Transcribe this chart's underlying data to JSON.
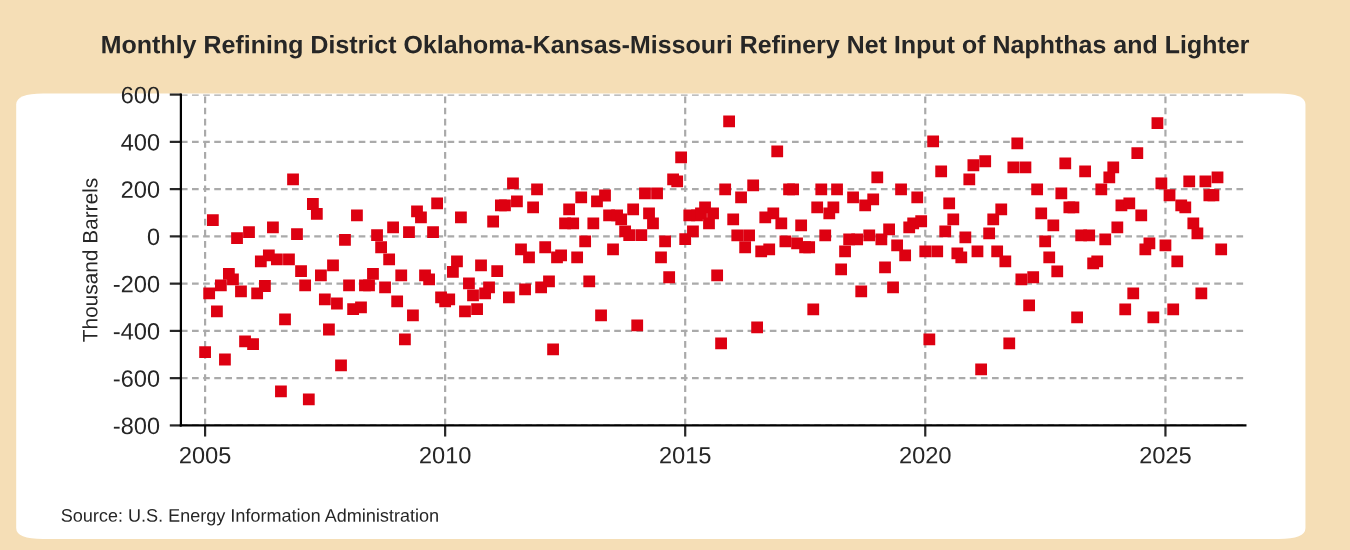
{
  "chart_data": {
    "type": "scatter",
    "title": "Monthly Refining District Oklahoma-Kansas-Missouri Refinery Net Input of Naphthas and Lighter",
    "ylabel": "Thousand Barrels",
    "annotations": [
      "Source: U.S. Energy Information Administration"
    ],
    "xlim": [
      "2004-07",
      "2026-09"
    ],
    "xticks": [
      {
        "value": "2005",
        "label": "2005"
      },
      {
        "value": "2010",
        "label": "2010"
      },
      {
        "value": "2015",
        "label": "2015"
      },
      {
        "value": "2020",
        "label": "2020"
      },
      {
        "value": "2025",
        "label": "2025"
      }
    ],
    "ylim": [
      -800,
      600
    ],
    "yticks": [
      -800,
      -600,
      -400,
      -200,
      0,
      200,
      400,
      600
    ],
    "grid": true,
    "marker": "square",
    "series": [
      {
        "color": "#dd0011",
        "x": [
          "2005-01",
          "2005-02",
          "2005-03",
          "2005-04",
          "2005-05",
          "2005-06",
          "2005-07",
          "2005-08",
          "2005-09",
          "2005-10",
          "2005-11",
          "2005-12",
          "2006-01",
          "2006-02",
          "2006-03",
          "2006-04",
          "2006-05",
          "2006-06",
          "2006-07",
          "2006-08",
          "2006-09",
          "2006-10",
          "2006-11",
          "2006-12",
          "2007-01",
          "2007-02",
          "2007-03",
          "2007-04",
          "2007-05",
          "2007-06",
          "2007-07",
          "2007-08",
          "2007-09",
          "2007-10",
          "2007-11",
          "2007-12",
          "2008-01",
          "2008-02",
          "2008-03",
          "2008-04",
          "2008-05",
          "2008-06",
          "2008-07",
          "2008-08",
          "2008-09",
          "2008-10",
          "2008-11",
          "2008-12",
          "2009-01",
          "2009-02",
          "2009-03",
          "2009-04",
          "2009-05",
          "2009-06",
          "2009-07",
          "2009-08",
          "2009-09",
          "2009-10",
          "2009-11",
          "2009-12",
          "2010-01",
          "2010-02",
          "2010-03",
          "2010-04",
          "2010-05",
          "2010-06",
          "2010-07",
          "2010-08",
          "2010-09",
          "2010-10",
          "2010-11",
          "2010-12",
          "2011-01",
          "2011-02",
          "2011-03",
          "2011-04",
          "2011-05",
          "2011-06",
          "2011-07",
          "2011-08",
          "2011-09",
          "2011-10",
          "2011-11",
          "2011-12",
          "2012-01",
          "2012-02",
          "2012-03",
          "2012-04",
          "2012-05",
          "2012-06",
          "2012-07",
          "2012-08",
          "2012-09",
          "2012-10",
          "2012-11",
          "2012-12",
          "2013-01",
          "2013-02",
          "2013-03",
          "2013-04",
          "2013-05",
          "2013-06",
          "2013-07",
          "2013-08",
          "2013-09",
          "2013-10",
          "2013-11",
          "2013-12",
          "2014-01",
          "2014-02",
          "2014-03",
          "2014-04",
          "2014-05",
          "2014-06",
          "2014-07",
          "2014-08",
          "2014-09",
          "2014-10",
          "2014-11",
          "2014-12",
          "2015-01",
          "2015-02",
          "2015-03",
          "2015-04",
          "2015-05",
          "2015-06",
          "2015-07",
          "2015-08",
          "2015-09",
          "2015-10",
          "2015-11",
          "2015-12",
          "2016-01",
          "2016-02",
          "2016-03",
          "2016-04",
          "2016-05",
          "2016-06",
          "2016-07",
          "2016-08",
          "2016-09",
          "2016-10",
          "2016-11",
          "2016-12",
          "2017-01",
          "2017-02",
          "2017-03",
          "2017-04",
          "2017-05",
          "2017-06",
          "2017-07",
          "2017-08",
          "2017-09",
          "2017-10",
          "2017-11",
          "2017-12",
          "2018-01",
          "2018-02",
          "2018-03",
          "2018-04",
          "2018-05",
          "2018-06",
          "2018-07",
          "2018-08",
          "2018-09",
          "2018-10",
          "2018-11",
          "2018-12",
          "2019-01",
          "2019-02",
          "2019-03",
          "2019-04",
          "2019-05",
          "2019-06",
          "2019-07",
          "2019-08",
          "2019-09",
          "2019-10",
          "2019-11",
          "2019-12",
          "2020-01",
          "2020-02",
          "2020-03",
          "2020-04",
          "2020-05",
          "2020-06",
          "2020-07",
          "2020-08",
          "2020-09",
          "2020-10",
          "2020-11",
          "2020-12",
          "2021-01",
          "2021-02",
          "2021-03",
          "2021-04",
          "2021-05",
          "2021-06",
          "2021-07",
          "2021-08",
          "2021-09",
          "2021-10",
          "2021-11",
          "2021-12",
          "2022-01",
          "2022-02",
          "2022-03",
          "2022-04",
          "2022-05",
          "2022-06",
          "2022-07",
          "2022-08",
          "2022-09",
          "2022-10",
          "2022-11",
          "2022-12",
          "2023-01",
          "2023-02",
          "2023-03",
          "2023-04",
          "2023-05",
          "2023-06",
          "2023-07",
          "2023-08",
          "2023-09",
          "2023-10",
          "2023-11",
          "2023-12",
          "2024-01",
          "2024-02",
          "2024-03",
          "2024-04",
          "2024-05",
          "2024-06",
          "2024-07",
          "2024-08",
          "2024-09",
          "2024-10",
          "2024-11",
          "2024-12",
          "2025-01",
          "2025-02",
          "2025-03",
          "2025-04",
          "2025-05",
          "2025-06",
          "2025-07",
          "2025-08",
          "2025-09",
          "2025-10",
          "2025-11",
          "2025-12",
          "2026-01",
          "2026-02",
          "2026-03"
        ],
        "values": [
          -490,
          -241,
          69,
          -317,
          -207,
          -521,
          -159,
          -182,
          -7,
          -233,
          -444,
          18,
          -456,
          -241,
          -106,
          -210,
          -80,
          38,
          -97,
          -656,
          -351,
          -97,
          241,
          10,
          -147,
          -207,
          -690,
          137,
          95,
          -165,
          -267,
          -394,
          -123,
          -284,
          -546,
          -15,
          -207,
          -308,
          89,
          -300,
          -207,
          -207,
          -159,
          5,
          -46,
          -216,
          -97,
          38,
          -275,
          -165,
          -436,
          18,
          -334,
          106,
          80,
          -165,
          -182,
          18,
          140,
          -258,
          -275,
          -267,
          -150,
          -106,
          80,
          -317,
          -199,
          -250,
          -308,
          -123,
          -241,
          -216,
          63,
          -147,
          131,
          131,
          -258,
          224,
          148,
          -55,
          -224,
          -89,
          123,
          199,
          -216,
          -46,
          -190,
          -478,
          -89,
          -80,
          55,
          114,
          55,
          -89,
          165,
          -21,
          -190,
          55,
          148,
          -334,
          173,
          89,
          -55,
          89,
          72,
          21,
          5,
          114,
          -377,
          5,
          182,
          97,
          55,
          182,
          -89,
          -21,
          -173,
          241,
          233,
          334,
          -12,
          89,
          21,
          89,
          97,
          123,
          55,
          97,
          -165,
          -453,
          199,
          487,
          72,
          4,
          165,
          -46,
          4,
          216,
          -385,
          -63,
          80,
          -55,
          97,
          360,
          55,
          -21,
          199,
          199,
          -30,
          47,
          -46,
          -46,
          -309,
          123,
          199,
          4,
          97,
          123,
          199,
          -140,
          -63,
          -13,
          165,
          -13,
          -233,
          131,
          4,
          157,
          250,
          -13,
          -131,
          30,
          -216,
          -38,
          199,
          -80,
          38,
          55,
          165,
          64,
          -63,
          -436,
          402,
          -63,
          275,
          21,
          140,
          72,
          -72,
          -89,
          -4,
          241,
          301,
          -63,
          -563,
          318,
          13,
          72,
          -63,
          114,
          -106,
          -453,
          292,
          394,
          -182,
          292,
          -292,
          -173,
          199,
          97,
          -21,
          -89,
          47,
          -148,
          182,
          309,
          123,
          123,
          -343,
          4,
          275,
          4,
          -114,
          -106,
          199,
          -13,
          250,
          292,
          38,
          131,
          -309,
          140,
          -241,
          352,
          89,
          -55,
          -30,
          -343,
          479,
          224,
          -38,
          174,
          -309,
          -106,
          131,
          123,
          233,
          55,
          13,
          -241,
          233,
          174,
          174,
          250,
          -55
        ]
      }
    ]
  }
}
